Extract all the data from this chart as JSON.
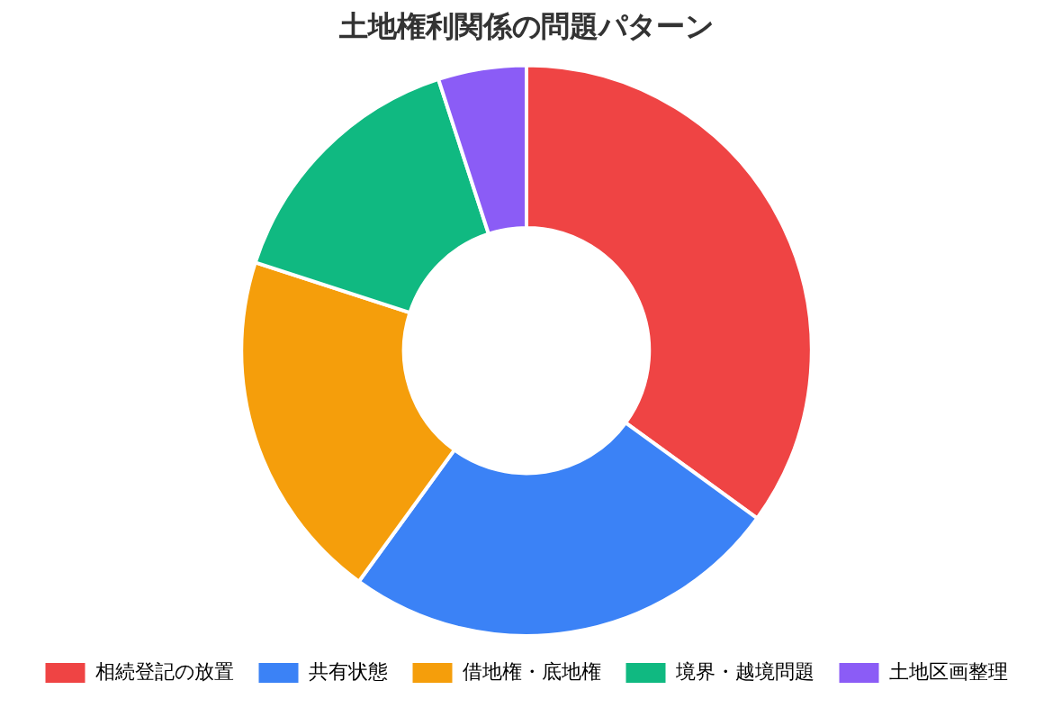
{
  "chart_data": {
    "type": "donut",
    "title": "土地権利関係の問題パターン",
    "categories": [
      "相続登記の放置",
      "共有状態",
      "借地権・底地権",
      "境界・越境問題",
      "土地区画整理"
    ],
    "values": [
      35,
      25,
      20,
      15,
      5
    ],
    "colors": [
      "#ef4444",
      "#3b82f6",
      "#f59e0b",
      "#10b981",
      "#8b5cf6"
    ],
    "legend": "bottom"
  }
}
